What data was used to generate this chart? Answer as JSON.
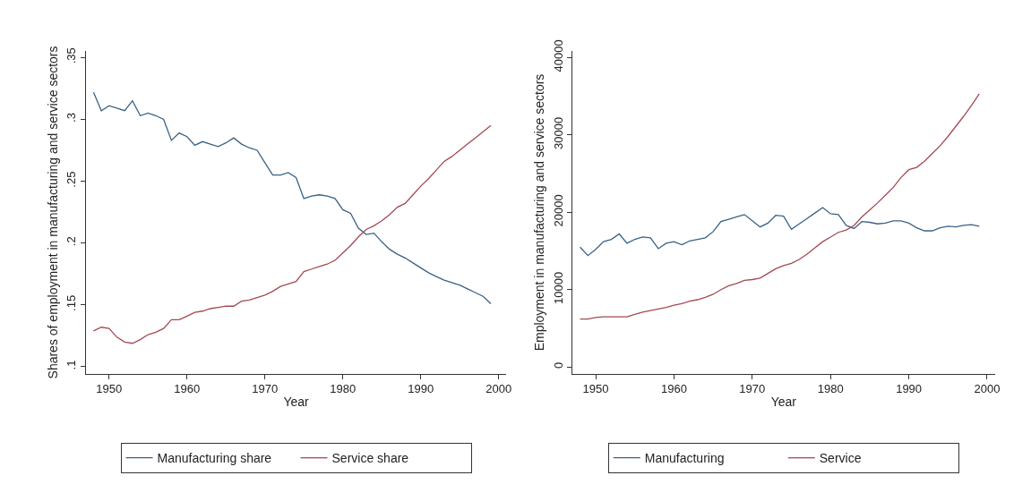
{
  "chart_data": [
    {
      "type": "line",
      "xlabel": "Year",
      "ylabel": "Shares of employment in manufacturing and service sectors",
      "x": [
        1948,
        1949,
        1950,
        1951,
        1952,
        1953,
        1954,
        1955,
        1956,
        1957,
        1958,
        1959,
        1960,
        1961,
        1962,
        1963,
        1964,
        1965,
        1966,
        1967,
        1968,
        1969,
        1970,
        1971,
        1972,
        1973,
        1974,
        1975,
        1976,
        1977,
        1978,
        1979,
        1980,
        1981,
        1982,
        1983,
        1984,
        1985,
        1986,
        1987,
        1988,
        1989,
        1990,
        1991,
        1992,
        1993,
        1994,
        1995,
        1996,
        1997,
        1998,
        1999
      ],
      "series": [
        {
          "name": "Manufacturing share",
          "color": "#3a6285",
          "values": [
            0.322,
            0.307,
            0.311,
            0.309,
            0.307,
            0.315,
            0.303,
            0.305,
            0.303,
            0.3,
            0.283,
            0.289,
            0.286,
            0.279,
            0.282,
            0.28,
            0.278,
            0.281,
            0.285,
            0.28,
            0.277,
            0.275,
            0.265,
            0.255,
            0.255,
            0.257,
            0.253,
            0.236,
            0.238,
            0.239,
            0.238,
            0.236,
            0.227,
            0.224,
            0.212,
            0.207,
            0.208,
            0.201,
            0.195,
            0.191,
            0.188,
            0.184,
            0.18,
            0.176,
            0.173,
            0.17,
            0.168,
            0.166,
            0.163,
            0.16,
            0.157,
            0.151
          ]
        },
        {
          "name": "Service share",
          "color": "#a34a52",
          "values": [
            0.129,
            0.132,
            0.131,
            0.124,
            0.12,
            0.119,
            0.122,
            0.126,
            0.128,
            0.131,
            0.138,
            0.138,
            0.141,
            0.144,
            0.145,
            0.147,
            0.148,
            0.149,
            0.149,
            0.153,
            0.154,
            0.156,
            0.158,
            0.161,
            0.165,
            0.167,
            0.169,
            0.177,
            0.179,
            0.181,
            0.183,
            0.186,
            0.192,
            0.198,
            0.205,
            0.211,
            0.214,
            0.218,
            0.223,
            0.229,
            0.232,
            0.239,
            0.246,
            0.252,
            0.259,
            0.266,
            0.27,
            0.275,
            0.28,
            0.285,
            0.29,
            0.295
          ]
        }
      ],
      "xlim": [
        1947,
        2001
      ],
      "xticks": [
        1950,
        1960,
        1970,
        1980,
        1990,
        2000
      ],
      "ylim": [
        0.0945,
        0.355
      ],
      "yticks": [
        {
          "value": 0.1,
          "label": ".1"
        },
        {
          "value": 0.15,
          "label": ".15"
        },
        {
          "value": 0.2,
          "label": ".2"
        },
        {
          "value": 0.25,
          "label": ".25"
        },
        {
          "value": 0.3,
          "label": ".3"
        },
        {
          "value": 0.35,
          "label": ".35"
        }
      ],
      "legend": "bottom"
    },
    {
      "type": "line",
      "xlabel": "Year",
      "ylabel": "Employment in manufacturing and service sectors",
      "x": [
        1948,
        1949,
        1950,
        1951,
        1952,
        1953,
        1954,
        1955,
        1956,
        1957,
        1958,
        1959,
        1960,
        1961,
        1962,
        1963,
        1964,
        1965,
        1966,
        1967,
        1968,
        1969,
        1970,
        1971,
        1972,
        1973,
        1974,
        1975,
        1976,
        1977,
        1978,
        1979,
        1980,
        1981,
        1982,
        1983,
        1984,
        1985,
        1986,
        1987,
        1988,
        1989,
        1990,
        1991,
        1992,
        1993,
        1994,
        1995,
        1996,
        1997,
        1998,
        1999
      ],
      "series": [
        {
          "name": "Manufacturing",
          "color": "#3a6285",
          "values": [
            15500,
            14400,
            15200,
            16200,
            16500,
            17200,
            16000,
            16500,
            16800,
            16700,
            15300,
            16000,
            16200,
            15800,
            16300,
            16500,
            16700,
            17500,
            18800,
            19100,
            19400,
            19700,
            18900,
            18100,
            18600,
            19600,
            19500,
            17800,
            18500,
            19200,
            19900,
            20600,
            19800,
            19700,
            18300,
            17900,
            18800,
            18700,
            18500,
            18600,
            18900,
            18900,
            18600,
            18000,
            17600,
            17600,
            18000,
            18200,
            18100,
            18300,
            18400,
            18200
          ]
        },
        {
          "name": "Service",
          "color": "#a34a52",
          "values": [
            6200,
            6200,
            6400,
            6500,
            6500,
            6500,
            6500,
            6800,
            7100,
            7300,
            7500,
            7700,
            8000,
            8200,
            8500,
            8700,
            9000,
            9400,
            10000,
            10500,
            10800,
            11200,
            11300,
            11500,
            12100,
            12700,
            13100,
            13400,
            13900,
            14600,
            15400,
            16200,
            16800,
            17400,
            17700,
            18300,
            19400,
            20300,
            21200,
            22200,
            23200,
            24500,
            25500,
            25800,
            26600,
            27600,
            28600,
            29800,
            31100,
            32400,
            33800,
            35300
          ]
        }
      ],
      "xlim": [
        1947,
        2001
      ],
      "xticks": [
        1950,
        1960,
        1970,
        1980,
        1990,
        2000
      ],
      "ylim": [
        -850,
        40800
      ],
      "yticks": [
        0,
        10000,
        20000,
        30000,
        40000
      ],
      "legend": "bottom"
    }
  ]
}
